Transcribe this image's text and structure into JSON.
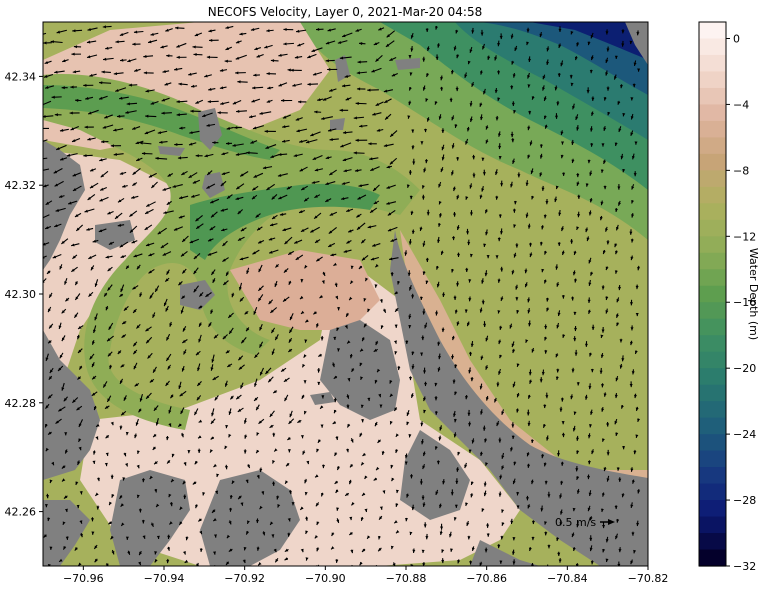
{
  "title": "NECOFS Velocity, Layer 0, 2021-Mar-20 04:58",
  "chart_data": {
    "type": "heatmap",
    "title": "NECOFS Velocity, Layer 0, 2021-Mar-20 04:58",
    "x_ticks": [
      "-70.96",
      "-70.94",
      "-70.92",
      "-70.90",
      "-70.88",
      "-70.86",
      "-70.84",
      "-70.82"
    ],
    "y_ticks": [
      "42.34",
      "42.32",
      "42.30",
      "42.28",
      "42.26"
    ],
    "xlim": [
      -70.97,
      -70.82
    ],
    "ylim": [
      42.25,
      42.35
    ],
    "colorbar": {
      "label": "Water Depth (m)",
      "ticks": [
        "0",
        "−4",
        "−8",
        "−12",
        "−16",
        "−20",
        "−24",
        "−28",
        "−32"
      ],
      "range": [
        -32,
        1
      ],
      "colors": [
        "#fdf3f1",
        "#f1d7cc",
        "#dfb49f",
        "#c7a477",
        "#adb05e",
        "#8ead57",
        "#5e9e4f",
        "#3d8f62",
        "#2a7a6e",
        "#1f5f7a",
        "#183c80",
        "#0c1a75",
        "#04002b"
      ]
    },
    "land_color": "#808080",
    "quiver_key": "0.5 m/s",
    "grid": false
  }
}
